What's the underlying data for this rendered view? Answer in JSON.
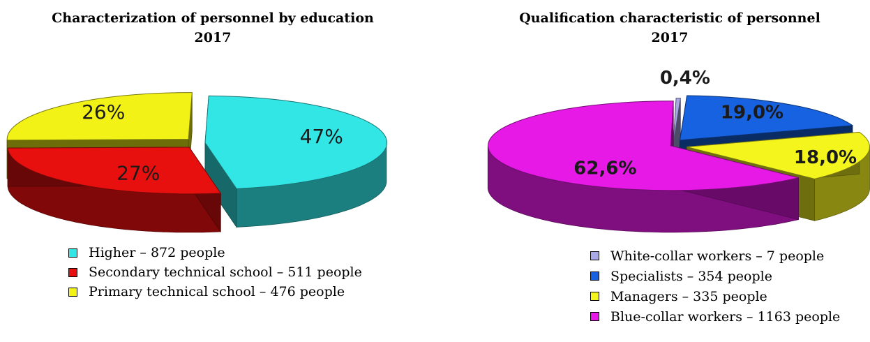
{
  "chart_data": [
    {
      "type": "pie",
      "title": "Characterization of personnel by education",
      "subtitle": "2017",
      "slices": [
        {
          "label": "Higher – 872 people",
          "value": 872,
          "percent_label": "47%",
          "color": "#33e6e6"
        },
        {
          "label": "Secondary technical school – 511 people",
          "value": 511,
          "percent_label": "27%",
          "color": "#e80f0f"
        },
        {
          "label": "Primary technical school – 476 people",
          "value": 476,
          "percent_label": "26%",
          "color": "#f2f217"
        }
      ],
      "legend_position": "bottom-left"
    },
    {
      "type": "pie",
      "title": "Qualification characteristic of personnel",
      "subtitle": "2017",
      "slices": [
        {
          "label": "White-collar workers – 7 people",
          "value": 7,
          "percent_label": "0,4%",
          "color": "#a9a9e8"
        },
        {
          "label": "Specialists – 354 people",
          "value": 354,
          "percent_label": "19,0%",
          "color": "#1662e0"
        },
        {
          "label": "Managers – 335 people",
          "value": 335,
          "percent_label": "18,0%",
          "color": "#f5f51e"
        },
        {
          "label": "Blue-collar workers – 1163 people",
          "value": 1163,
          "percent_label": "62,6%",
          "color": "#e619e6"
        }
      ],
      "legend_position": "bottom-right"
    }
  ]
}
